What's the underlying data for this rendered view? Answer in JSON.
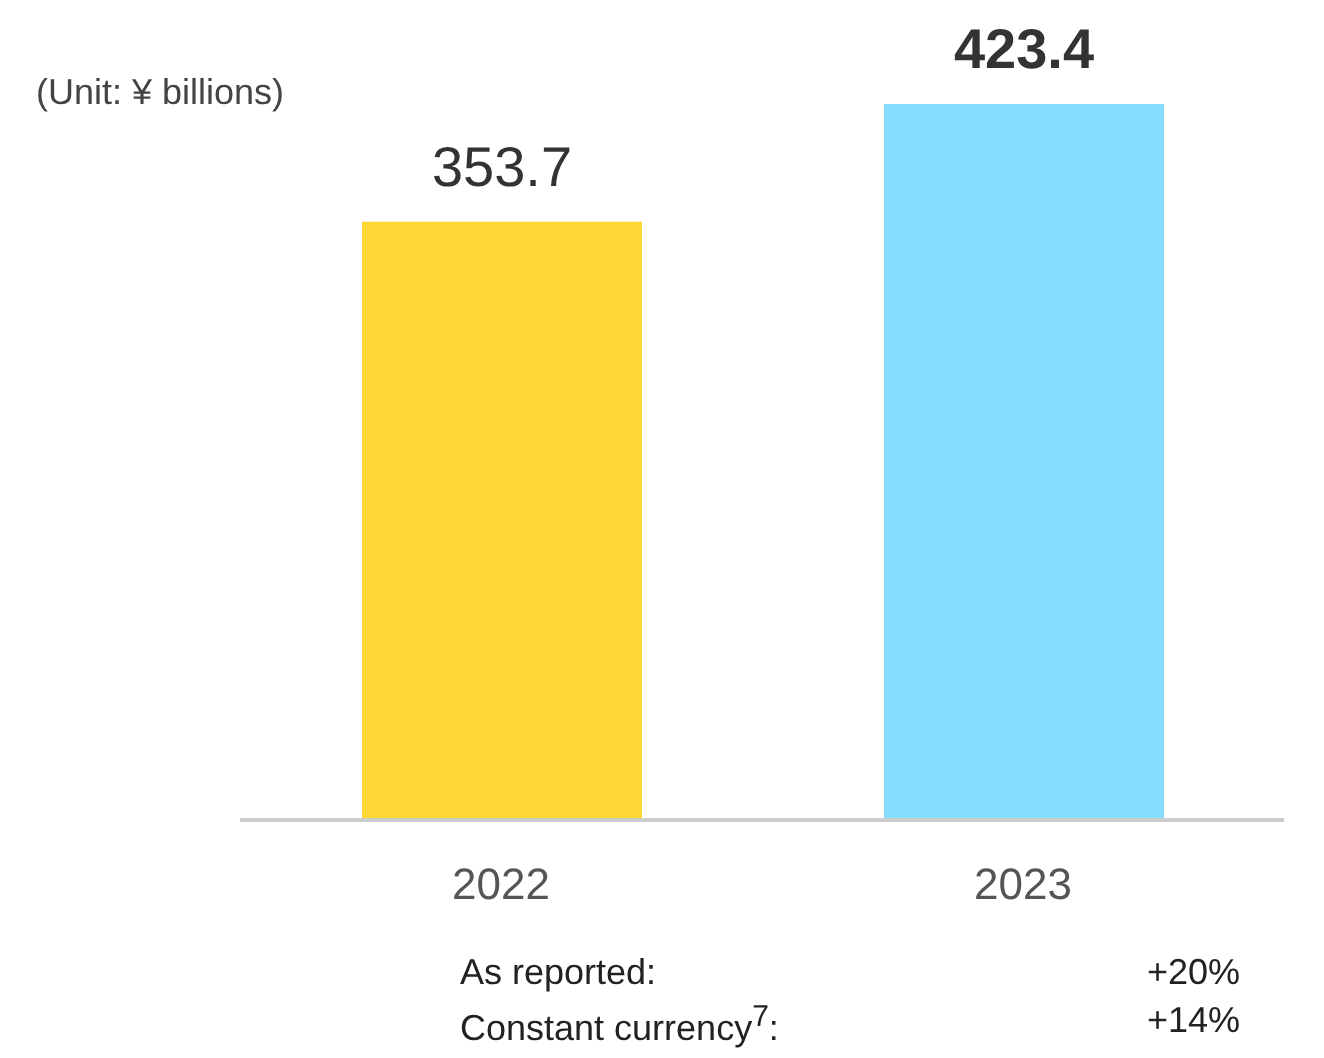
{
  "chart_data": {
    "type": "bar",
    "categories": [
      "2022",
      "2023"
    ],
    "values": [
      353.7,
      423.4
    ],
    "colors": [
      "#fdd835",
      "#84dcff"
    ],
    "data_labels": true,
    "annotations": [
      "(Unit: ¥ billions)",
      "As reported:",
      "+20%",
      "Constant currency$^{7}$:",
      "+14%"
    ]
  }
}
